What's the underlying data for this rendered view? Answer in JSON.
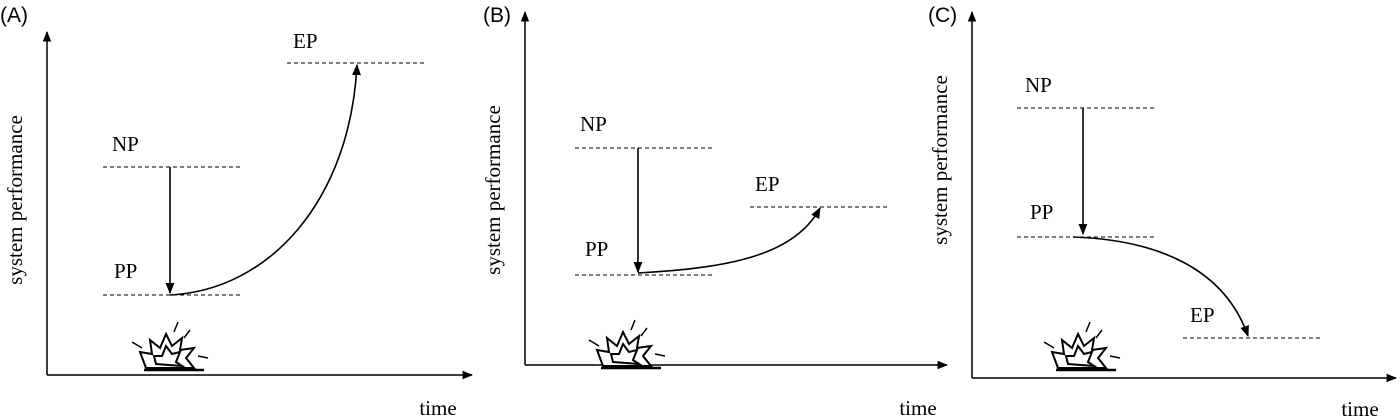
{
  "panels": [
    {
      "label": "(A)",
      "y_axis": "system performance",
      "x_axis": "time",
      "levels": {
        "np": "NP",
        "pp": "PP",
        "ep": "EP"
      }
    },
    {
      "label": "(B)",
      "y_axis": "system performance",
      "x_axis": "time",
      "levels": {
        "np": "NP",
        "pp": "PP",
        "ep": "EP"
      }
    },
    {
      "label": "(C)",
      "y_axis": "system performance",
      "x_axis": "time",
      "levels": {
        "np": "NP",
        "pp": "PP",
        "ep": "EP"
      }
    }
  ]
}
